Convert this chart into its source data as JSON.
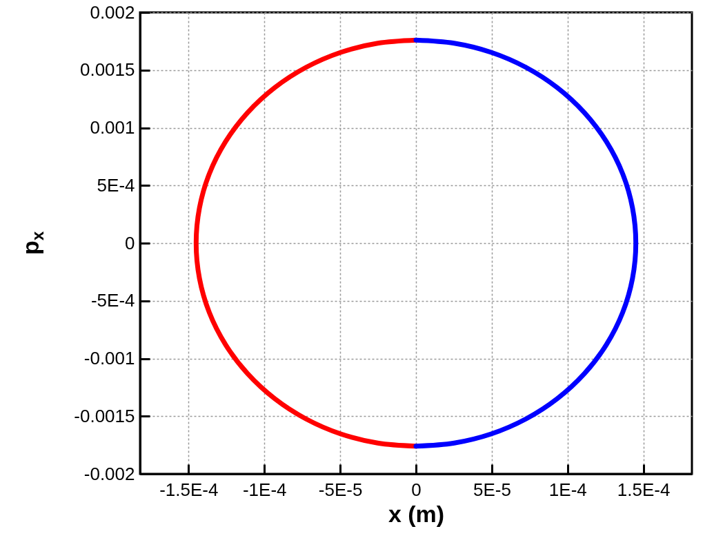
{
  "chart_data": {
    "type": "line",
    "xlabel": "x (m)",
    "ylabel": "p$_{x}$",
    "xlim": [
      -0.000182,
      0.000182
    ],
    "ylim": [
      -0.002,
      0.002
    ],
    "xticks": [
      {
        "value": -0.00015,
        "label": "-1.5E-4"
      },
      {
        "value": -0.0001,
        "label": "-1E-4"
      },
      {
        "value": -5e-05,
        "label": "-5E-5"
      },
      0,
      {
        "value": 5e-05,
        "label": "5E-5"
      },
      {
        "value": 0.0001,
        "label": "1E-4"
      },
      {
        "value": 0.00015,
        "label": "1.5E-4"
      }
    ],
    "yticks": [
      -0.002,
      -0.0015,
      -0.001,
      {
        "value": -0.0005,
        "label": "-5E-4"
      },
      0,
      {
        "value": 0.0005,
        "label": "5E-4"
      },
      0.001,
      0.0015,
      0.002
    ],
    "grid": true,
    "line_style": "solid",
    "series": [
      {
        "color": "#ff0000",
        "x": [
          0,
          -2.52e-05,
          -4.96e-05,
          -7.25e-05,
          -9.32e-05,
          -0.0001111,
          -0.0001256,
          -0.0001363,
          -0.0001428,
          -0.000145,
          -0.0001428,
          -0.0001363,
          -0.0001256,
          -0.0001111,
          -9.32e-05,
          -7.25e-05,
          -4.96e-05,
          -2.52e-05,
          0
        ],
        "values": [
          0.00176,
          0.001733,
          0.001654,
          0.001524,
          0.001348,
          0.001131,
          0.00088,
          0.000602,
          0.000306,
          0,
          -0.000306,
          -0.000602,
          -0.00088,
          -0.001131,
          -0.001348,
          -0.001524,
          -0.001654,
          -0.001733,
          -0.00176
        ]
      },
      {
        "color": "#0000ff",
        "x": [
          0,
          2.52e-05,
          4.96e-05,
          7.25e-05,
          9.32e-05,
          0.0001111,
          0.0001256,
          0.0001363,
          0.0001428,
          0.000145,
          0.0001428,
          0.0001363,
          0.0001256,
          0.0001111,
          9.32e-05,
          7.25e-05,
          4.96e-05,
          2.52e-05,
          0
        ],
        "values": [
          0.00176,
          0.001733,
          0.001654,
          0.001524,
          0.001348,
          0.001131,
          0.00088,
          0.000602,
          0.000306,
          0,
          -0.000306,
          -0.000602,
          -0.00088,
          -0.001131,
          -0.001348,
          -0.001524,
          -0.001654,
          -0.001733,
          -0.00176
        ]
      }
    ]
  }
}
